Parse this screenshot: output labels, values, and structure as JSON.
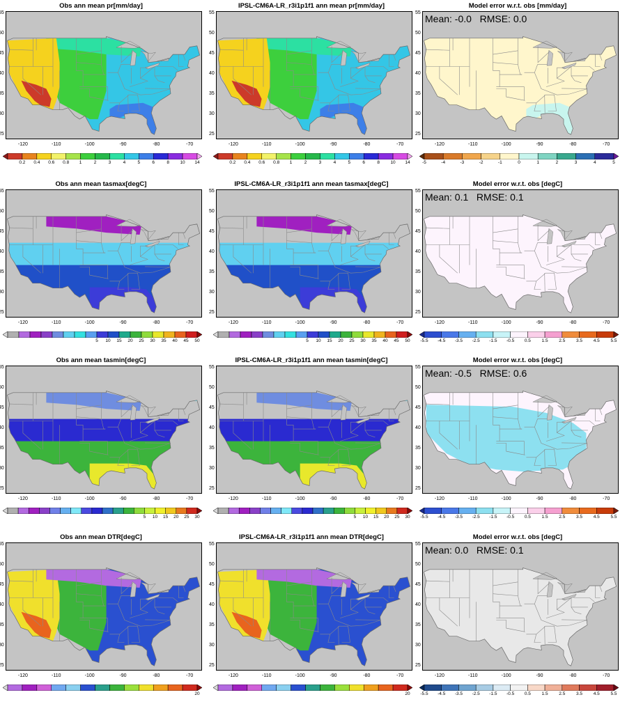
{
  "rows": [
    {
      "id": "pr",
      "obs_title": "Obs  ann mean pr[mm/day]",
      "model_title": "IPSL-CM6A-LR_r3i1p1f1 ann mean pr[mm/day]",
      "err_title": "Model error w.r.t. obs [mm/day]",
      "stats": "Mean: -0.0   RMSE: 0.0",
      "cbar_labels": [
        "0.2",
        "0.4",
        "0.6",
        "0.8",
        "1",
        "2",
        "3",
        "4",
        "5",
        "6",
        "8",
        "10",
        "14"
      ],
      "cbar_colors": [
        "#8c1a1a",
        "#cc3a2a",
        "#e8841e",
        "#f5d21e",
        "#f2f26a",
        "#a6e34a",
        "#3dcf3d",
        "#26b84a",
        "#2ce0a2",
        "#34c6e6",
        "#3d7fe8",
        "#2a2ad6",
        "#8a2ce0",
        "#d64be3",
        "#f5a3f0"
      ],
      "err_labels": [
        "-5",
        "-4",
        "-3",
        "-2",
        "-1",
        "0",
        "1",
        "2",
        "3",
        "4",
        "5"
      ],
      "err_colors": [
        "#5e2c0a",
        "#a8501a",
        "#d97a2a",
        "#f0a64c",
        "#f6d38a",
        "#fff6cc",
        "#c8f5ee",
        "#7fd4c2",
        "#39a88e",
        "#2b6fb4",
        "#2b2b9a",
        "#6a1b9a"
      ]
    },
    {
      "id": "tasmax",
      "obs_title": "Obs  ann mean tasmax[degC]",
      "model_title": "IPSL-CM6A-LR_r3i1p1f1 ann mean tasmax[degC]",
      "err_title": "Model error w.r.t. obs [degC]",
      "stats": "Mean: 0.1   RMSE: 0.1",
      "cbar_labels": [
        "5",
        "10",
        "15",
        "20",
        "25",
        "30",
        "35",
        "40",
        "45",
        "50"
      ],
      "cbar_colors": [
        "#d9d9d9",
        "#b0b0b0",
        "#b36ae0",
        "#a020c0",
        "#8a40c8",
        "#6f8de0",
        "#60d0f0",
        "#34e0e0",
        "#5aa0f0",
        "#3c3cd8",
        "#2050c8",
        "#1faa8c",
        "#3cb43c",
        "#8fdc3c",
        "#e8e82c",
        "#f0b41e",
        "#e8641e",
        "#d01e1e",
        "#8c0a0a"
      ],
      "err_labels": [
        "-5.5",
        "-4.5",
        "-3.5",
        "-2.5",
        "-1.5",
        "-0.5",
        "0.5",
        "1.5",
        "2.5",
        "3.5",
        "4.5",
        "5.5"
      ],
      "err_colors": [
        "#1a2a8c",
        "#2d4fd0",
        "#4a78e8",
        "#66b0f0",
        "#8de0f0",
        "#c8f4f8",
        "#fdf4fd",
        "#fbd0ea",
        "#f5a0d0",
        "#f08c3c",
        "#e86a1e",
        "#c83c0a",
        "#7a1a0a"
      ]
    },
    {
      "id": "tasmin",
      "obs_title": "Obs  ann mean tasmin[degC]",
      "model_title": "IPSL-CM6A-LR_r3i1p1f1 ann mean tasmin[degC]",
      "err_title": "Model error w.r.t. obs [degC]",
      "stats": "Mean: -0.5   RMSE: 0.6",
      "cbar_labels": [
        "5",
        "10",
        "15",
        "20",
        "25",
        "30"
      ],
      "cbar_colors": [
        "#d9d9d9",
        "#b0b0b0",
        "#b36ae0",
        "#a020c0",
        "#8a40c8",
        "#7080e8",
        "#66b0f0",
        "#80e8f8",
        "#4a4ae0",
        "#2a2ad0",
        "#3070c8",
        "#2aa08c",
        "#3cb43c",
        "#8fdc3c",
        "#c8f03c",
        "#f0f02c",
        "#f0c81e",
        "#e87a1e",
        "#d02a1e",
        "#8c0a0a"
      ],
      "err_labels": [
        "-5.5",
        "-4.5",
        "-3.5",
        "-2.5",
        "-1.5",
        "-0.5",
        "0.5",
        "1.5",
        "2.5",
        "3.5",
        "4.5",
        "5.5"
      ],
      "err_colors": [
        "#1a2a8c",
        "#2d4fd0",
        "#4a78e8",
        "#66b0f0",
        "#8de0f0",
        "#c8f4f8",
        "#fdf4fd",
        "#fbd0ea",
        "#f5a0d0",
        "#f08c3c",
        "#e86a1e",
        "#c83c0a",
        "#7a1a0a"
      ]
    },
    {
      "id": "dtr",
      "obs_title": "Obs  ann mean DTR[degC]",
      "model_title": "IPSL-CM6A-LR_r3i1p1f1 ann mean DTR[degC]",
      "err_title": "Model error w.r.t. obs [degC]",
      "stats": "Mean: 0.0   RMSE: 0.1",
      "cbar_labels": [
        "20"
      ],
      "cbar_colors": [
        "#d9d9d9",
        "#b36ae0",
        "#a020c0",
        "#d060d8",
        "#70a8f0",
        "#8ad0f0",
        "#2a50d0",
        "#2aa08c",
        "#3cb43c",
        "#9be03c",
        "#f0e02c",
        "#f0a01e",
        "#e8641e",
        "#d02a1e",
        "#8c0a0a"
      ],
      "err_labels": [
        "-5.5",
        "-4.5",
        "-3.5",
        "-2.5",
        "-1.5",
        "-0.5",
        "0.5",
        "1.5",
        "2.5",
        "3.5",
        "4.5",
        "5.5"
      ],
      "err_colors": [
        "#0a2a5a",
        "#1f4a8c",
        "#3f74b8",
        "#6fa4d0",
        "#a8cce4",
        "#dcebf4",
        "#f2f2f2",
        "#f8d8c8",
        "#f0b098",
        "#e07a5c",
        "#c8463c",
        "#a01e2a",
        "#6a0a14"
      ]
    }
  ],
  "lat_labels": [
    "55",
    "50",
    "45",
    "40",
    "35",
    "30",
    "25"
  ],
  "lon_labels": [
    "-120",
    "-110",
    "-100",
    "-90",
    "-80",
    "-70"
  ],
  "colors": {
    "ocean": "#c4c4c4",
    "border": "#8a8a8a",
    "stats_text": "#000000"
  },
  "maps": {
    "pr": {
      "field": [
        {
          "name": "east",
          "color": "#34c6e6"
        },
        {
          "name": "plains",
          "color": "#3dcf3d"
        },
        {
          "name": "north",
          "color": "#2ce0a2"
        },
        {
          "name": "west",
          "color": "#f5d21e"
        },
        {
          "name": "southwest",
          "color": "#cc3a2a"
        },
        {
          "name": "southeast",
          "color": "#3d7fe8"
        }
      ],
      "err": [
        {
          "name": "base",
          "color": "#fff6cc"
        },
        {
          "name": "southeast",
          "color": "#c8f5ee"
        }
      ]
    },
    "tasmax": {
      "field": [
        {
          "name": "north",
          "color": "#a020c0"
        },
        {
          "name": "mid",
          "color": "#60d0f0"
        },
        {
          "name": "south",
          "color": "#2050c8"
        },
        {
          "name": "gulf",
          "color": "#3c3cd8"
        },
        {
          "name": "far-north",
          "color": "#b0b0b0"
        }
      ],
      "err": [
        {
          "name": "base",
          "color": "#fdf4fd"
        }
      ]
    },
    "tasmin": {
      "field": [
        {
          "name": "north",
          "color": "#6f8de0"
        },
        {
          "name": "mid",
          "color": "#2a2ad0"
        },
        {
          "name": "south",
          "color": "#3cb43c"
        },
        {
          "name": "gulf",
          "color": "#e8e82c"
        },
        {
          "name": "far-north",
          "color": "#80e8f8"
        }
      ],
      "err": [
        {
          "name": "base",
          "color": "#fdf4fd"
        },
        {
          "name": "central",
          "color": "#8de0f0"
        }
      ]
    },
    "dtr": {
      "field": [
        {
          "name": "east",
          "color": "#2a50d0"
        },
        {
          "name": "plains",
          "color": "#3cb43c"
        },
        {
          "name": "west",
          "color": "#f0e02c"
        },
        {
          "name": "southwest",
          "color": "#e8641e"
        },
        {
          "name": "north",
          "color": "#b36ae0"
        }
      ],
      "err": [
        {
          "name": "base",
          "color": "#e8e8e8"
        }
      ]
    }
  }
}
